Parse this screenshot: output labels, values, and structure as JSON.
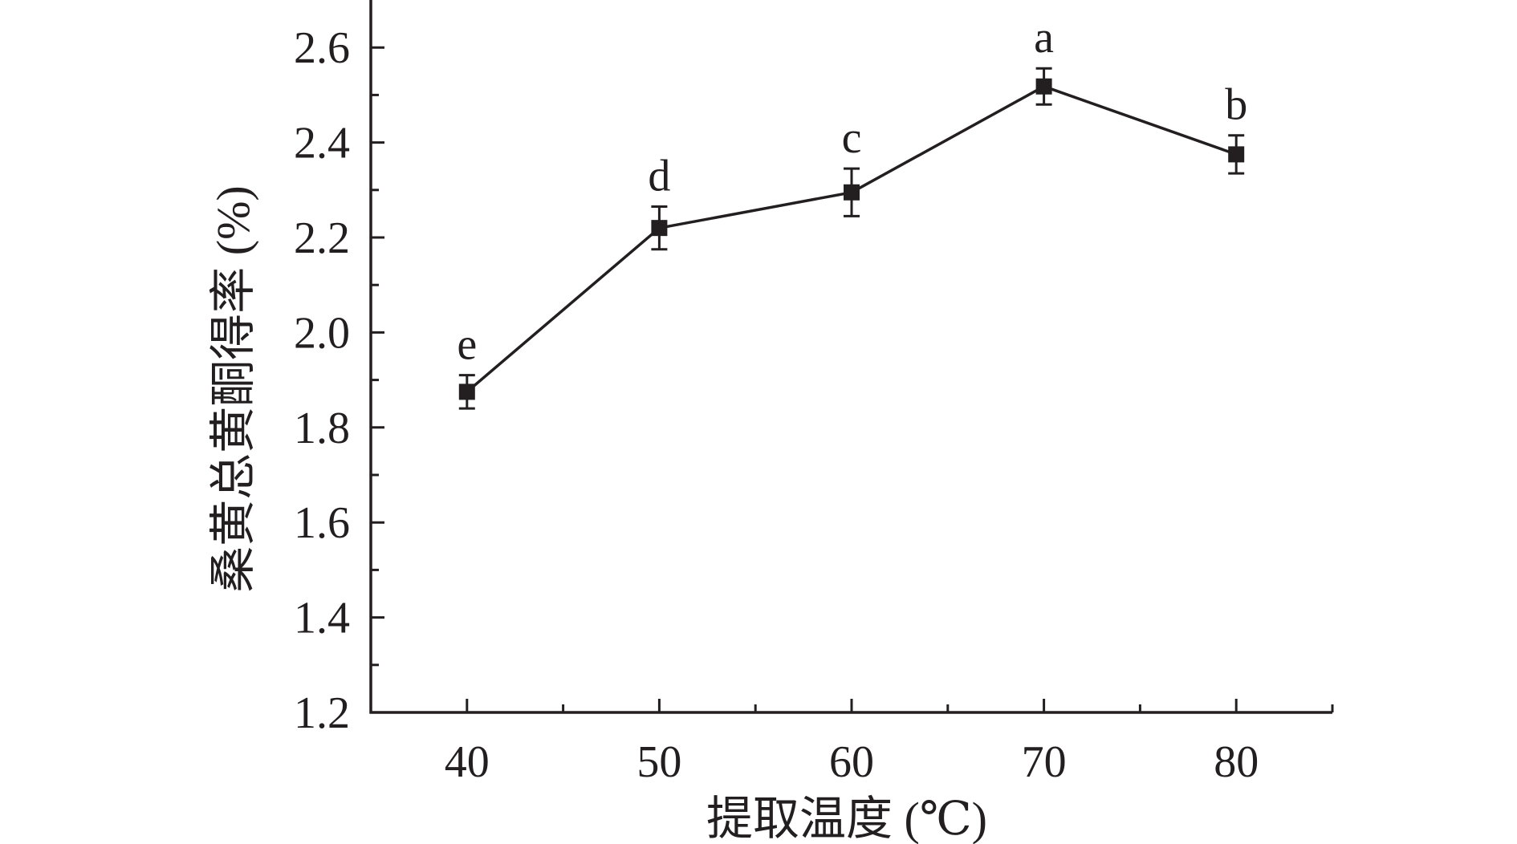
{
  "chart_data": {
    "type": "line",
    "xlabel": "提取温度 (℃)",
    "ylabel": "桑黄总黄酮得率 (%)",
    "xlim": [
      35,
      85
    ],
    "ylim": [
      1.2,
      2.7
    ],
    "x_ticks": [
      40,
      50,
      60,
      70,
      80
    ],
    "x_tick_labels": [
      "40",
      "50",
      "60",
      "70",
      "80"
    ],
    "y_ticks": [
      1.2,
      1.4,
      1.6,
      1.8,
      2.0,
      2.2,
      2.4,
      2.6
    ],
    "y_tick_labels": [
      "1.2",
      "1.4",
      "1.6",
      "1.8",
      "2.0",
      "2.2",
      "2.4",
      "2.6"
    ],
    "grid": false,
    "legend": "none",
    "series": [
      {
        "x": [
          40,
          50,
          60,
          70,
          80
        ],
        "y": [
          1.875,
          2.22,
          2.295,
          2.518,
          2.375
        ],
        "error": [
          0.035,
          0.045,
          0.05,
          0.038,
          0.04
        ],
        "labels": [
          "e",
          "d",
          "c",
          "a",
          "b"
        ],
        "marker": "square",
        "color": "#231f20"
      }
    ]
  }
}
